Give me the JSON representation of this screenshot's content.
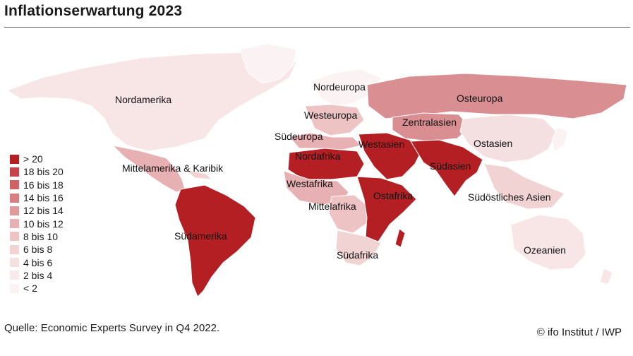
{
  "title": "Inflationserwartung 2023",
  "source": "Quelle: Economic Experts Survey in Q4 2022.",
  "credit": "© ifo Institut / IWP",
  "legend": [
    {
      "label": "> 20",
      "color": "#b41f24"
    },
    {
      "label": "18 bis 20",
      "color": "#c44449"
    },
    {
      "label": "16 bis 18",
      "color": "#cf6266"
    },
    {
      "label": "14 bis 16",
      "color": "#d87f82"
    },
    {
      "label": "12 bis 14",
      "color": "#e09a9c"
    },
    {
      "label": "10 bis 12",
      "color": "#e7b0b2"
    },
    {
      "label": "8 bis 10",
      "color": "#edc3c4"
    },
    {
      "label": "6 bis 8",
      "color": "#f1d3d4"
    },
    {
      "label": "4 bis 6",
      "color": "#f5e0e1"
    },
    {
      "label": "2 bis 4",
      "color": "#f8eaeb"
    },
    {
      "label": "< 2",
      "color": "#fbf3f3"
    }
  ],
  "regions": {
    "nordamerika": "Nordamerika",
    "mittelamerika": "Mittelamerika & Karibik",
    "suedamerika": "Südamerika",
    "nordeuropa": "Nordeuropa",
    "westeuropa": "Westeuropa",
    "suedeuropa": "Südeuropa",
    "osteuropa": "Osteuropa",
    "zentralasien": "Zentralasien",
    "westasien": "Westasien",
    "nordafrika": "Nordafrika",
    "westafrika": "Westafrika",
    "mittelafrika": "Mittelafrika",
    "ostafrika": "Ostafrika",
    "suedafrika": "Südafrika",
    "suedasien": "Südasien",
    "ostasien": "Ostasien",
    "suedostasien": "Südöstliches Asien",
    "ozeanien": "Ozeanien"
  }
}
